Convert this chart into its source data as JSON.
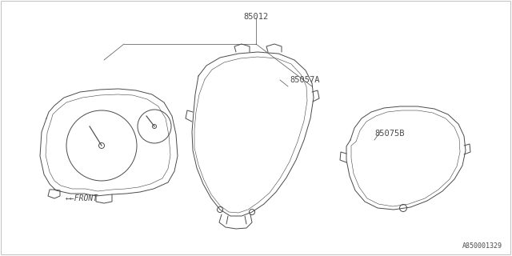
{
  "bg_color": "#ffffff",
  "line_color": "#4a4a4a",
  "text_color": "#4a4a4a",
  "label_85012": "85012",
  "label_85057A": "85057A",
  "label_85075B": "85075B",
  "label_front": "←←FRONT",
  "label_ref": "A850001329",
  "lw": 0.7,
  "fig_width": 6.4,
  "fig_height": 3.2,
  "dpi": 100
}
